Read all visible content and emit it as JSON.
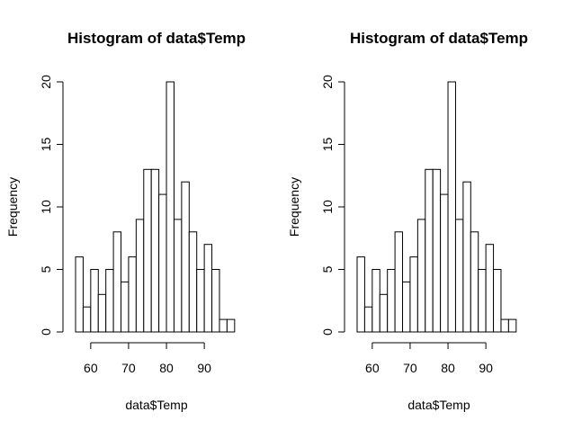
{
  "chart_data": [
    {
      "type": "bar",
      "title": "Histogram of data$Temp",
      "xlabel": "data$Temp",
      "ylabel": "Frequency",
      "bin_width": 2,
      "bin_edges": [
        56,
        58,
        60,
        62,
        64,
        66,
        68,
        70,
        72,
        74,
        76,
        78,
        80,
        82,
        84,
        86,
        88,
        90,
        92,
        94,
        96,
        98
      ],
      "values": [
        6,
        2,
        5,
        3,
        5,
        8,
        4,
        6,
        9,
        13,
        13,
        11,
        20,
        9,
        12,
        8,
        5,
        7,
        5,
        1,
        1
      ],
      "x_ticks": [
        60,
        70,
        80,
        90
      ],
      "x_tick_labels": [
        "60",
        "70",
        "80",
        "90"
      ],
      "y_ticks": [
        0,
        5,
        10,
        15,
        20
      ],
      "y_tick_labels": [
        "0",
        "5",
        "10",
        "15",
        "20"
      ],
      "ylim": [
        0,
        20
      ],
      "grid": false
    },
    {
      "type": "bar",
      "title": "Histogram of data$Temp",
      "xlabel": "data$Temp",
      "ylabel": "Frequency",
      "bin_width": 2,
      "bin_edges": [
        56,
        58,
        60,
        62,
        64,
        66,
        68,
        70,
        72,
        74,
        76,
        78,
        80,
        82,
        84,
        86,
        88,
        90,
        92,
        94,
        96,
        98
      ],
      "values": [
        6,
        2,
        5,
        3,
        5,
        8,
        4,
        6,
        9,
        13,
        13,
        11,
        20,
        9,
        12,
        8,
        5,
        7,
        5,
        1,
        1
      ],
      "x_ticks": [
        60,
        70,
        80,
        90
      ],
      "x_tick_labels": [
        "60",
        "70",
        "80",
        "90"
      ],
      "y_ticks": [
        0,
        5,
        10,
        15,
        20
      ],
      "y_tick_labels": [
        "0",
        "5",
        "10",
        "15",
        "20"
      ],
      "ylim": [
        0,
        20
      ],
      "grid": false
    }
  ]
}
